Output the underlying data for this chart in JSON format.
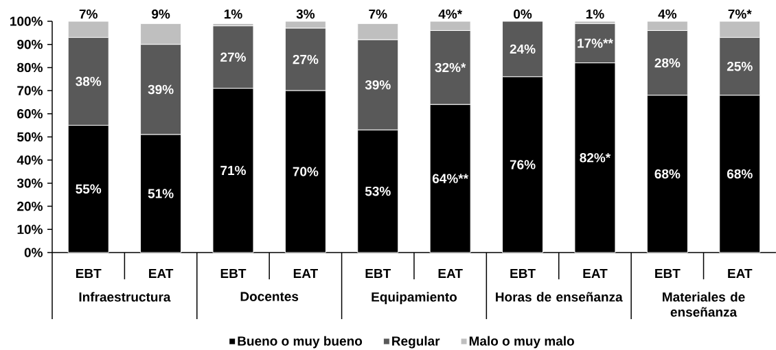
{
  "chart_data": {
    "type": "bar",
    "stacked": true,
    "categories": [
      "EBT",
      "EAT",
      "EBT",
      "EAT",
      "EBT",
      "EAT",
      "EBT",
      "EAT",
      "EBT",
      "EAT"
    ],
    "series": [
      {
        "name": "Bueno o muy bueno",
        "color": "#000000",
        "values": [
          55,
          51,
          71,
          70,
          53,
          64,
          76,
          82,
          68,
          68
        ],
        "value_labels": [
          "55%",
          "51%",
          "71%",
          "70%",
          "53%",
          "64%**",
          "76%",
          "82%*",
          "68%",
          "68%"
        ]
      },
      {
        "name": "Regular",
        "color": "#595959",
        "values": [
          38,
          39,
          27,
          27,
          39,
          32,
          24,
          17,
          28,
          25
        ],
        "value_labels": [
          "38%",
          "39%",
          "27%",
          "27%",
          "39%",
          "32%*",
          "24%",
          "17%**",
          "28%",
          "25%"
        ]
      },
      {
        "name": "Malo o muy malo",
        "color": "#bfbfbf",
        "values": [
          7,
          9,
          1,
          3,
          7,
          4,
          0,
          1,
          4,
          7
        ],
        "value_labels": [
          "7%",
          "9%",
          "1%",
          "3%",
          "7%",
          "4%*",
          "0%",
          "1%",
          "4%",
          "7%*"
        ]
      }
    ],
    "ylim": [
      0,
      100
    ],
    "yticks": [
      {
        "value": 0,
        "label": "0%"
      },
      {
        "value": 10,
        "label": "10%"
      },
      {
        "value": 20,
        "label": "20%"
      },
      {
        "value": 30,
        "label": "30%"
      },
      {
        "value": 40,
        "label": "40%"
      },
      {
        "value": 50,
        "label": "50%"
      },
      {
        "value": 60,
        "label": "60%"
      },
      {
        "value": 70,
        "label": "70%"
      },
      {
        "value": 80,
        "label": "80%"
      },
      {
        "value": 90,
        "label": "90%"
      },
      {
        "value": 100,
        "label": "100%"
      }
    ],
    "legend": "bottom",
    "annotations": [
      "Infraestructura",
      "Docentes",
      "Equipamiento",
      "Horas de enseñanza",
      "Materiales de enseñanza"
    ]
  }
}
